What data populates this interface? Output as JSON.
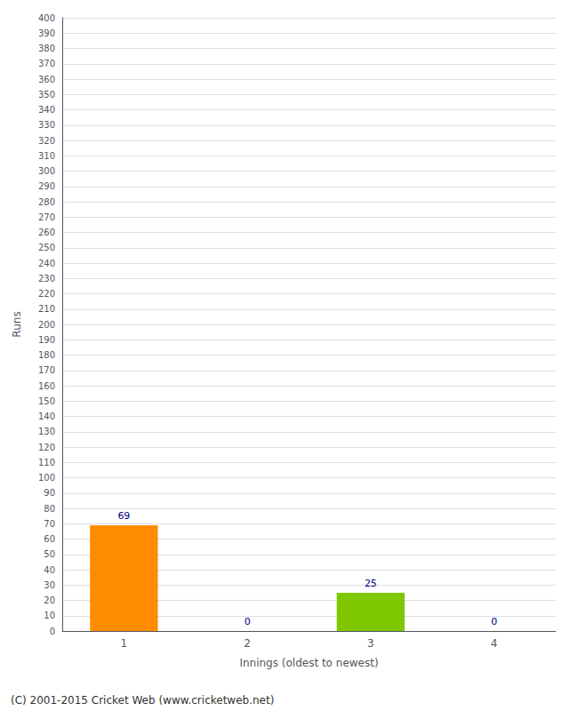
{
  "chart_data": {
    "type": "bar",
    "categories": [
      1,
      2,
      3,
      4
    ],
    "values": [
      69,
      0,
      25,
      0
    ],
    "colors": [
      "#FF8C00",
      "#FF8C00",
      "#7FC800",
      "#7FC800"
    ],
    "xlabel": "Innings (oldest to newest)",
    "ylabel": "Runs",
    "ylim": [
      0,
      400
    ],
    "yticks": [
      0,
      10,
      20,
      30,
      40,
      50,
      60,
      70,
      80,
      90,
      100,
      110,
      120,
      130,
      140,
      150,
      160,
      170,
      180,
      190,
      200,
      210,
      220,
      230,
      240,
      250,
      260,
      270,
      280,
      290,
      300,
      310,
      320,
      330,
      340,
      350,
      360,
      370,
      380,
      390,
      400
    ],
    "grid": true,
    "data_labels": true,
    "annotations": [
      "(C) 2001-2015 Cricket Web (www.cricketweb.net)"
    ]
  }
}
